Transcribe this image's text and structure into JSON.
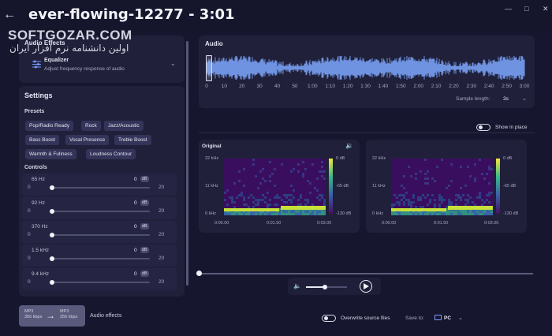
{
  "window": {
    "title": "ever-flowing-12277 - 3:01",
    "back_icon": "arrow-left-icon",
    "controls": [
      "minimize-icon",
      "maximize-icon",
      "close-icon"
    ]
  },
  "watermark": {
    "brand": "SOFTGOZAR.COM",
    "tagline": "اولین دانشنامه نرم افزار ایران"
  },
  "audio_effects": {
    "heading": "Audio Effects",
    "effect_title": "Equalizer",
    "effect_desc": "Adjust frequency response of audio",
    "effect_icon": "equalizer-sliders-icon"
  },
  "settings": {
    "heading": "Settings",
    "presets_heading": "Presets",
    "presets": [
      "Pop/Radio Ready",
      "Rock",
      "Jazz/Acoustic",
      "Bass Boost",
      "Vocal Presence",
      "Treble Boost",
      "Warmth & Fullness",
      "Loudness Contour"
    ],
    "controls_heading": "Controls",
    "controls": [
      {
        "label": "65 Hz",
        "value": "0",
        "unit": "dB",
        "min": "0",
        "max": "20",
        "level": 0
      },
      {
        "label": "92 Hz",
        "value": "0",
        "unit": "dB",
        "min": "0",
        "max": "20",
        "level": 0
      },
      {
        "label": "370 Hz",
        "value": "0",
        "unit": "dB",
        "min": "0",
        "max": "20",
        "level": 0
      },
      {
        "label": "1.5 kHz",
        "value": "0",
        "unit": "dB",
        "min": "0",
        "max": "20",
        "level": 0
      },
      {
        "label": "9.4 kHz",
        "value": "0",
        "unit": "dB",
        "min": "0",
        "max": "20",
        "level": 0
      }
    ]
  },
  "audio": {
    "heading": "Audio",
    "ticks": [
      "0",
      "10",
      "20",
      "30",
      "40",
      "50",
      "1:00",
      "1:10",
      "1:20",
      "1:30",
      "1:40",
      "1:50",
      "2:00",
      "2:10",
      "2:20",
      "2:30",
      "2:40",
      "2:50",
      "3:00"
    ],
    "sample_length_label": "Sample length:",
    "sample_length_value": "3s",
    "waveform_color": "#6f93e0"
  },
  "show_in_place": {
    "label": "Show in place",
    "on": false
  },
  "spectrograms": [
    {
      "title": "Original",
      "has_speaker": true,
      "freq_ticks": [
        "22 kHz",
        "11 kHz",
        "0 kHz"
      ],
      "db_ticks": [
        "0 dB",
        "-65 dB",
        "-130 dB"
      ],
      "time_ticks": [
        "0:00.00",
        "0:01.50",
        "0:03.00"
      ]
    },
    {
      "title": "",
      "has_speaker": false,
      "freq_ticks": [
        "22 kHz",
        "11 kHz",
        "0 kHz"
      ],
      "db_ticks": [
        "0 dB",
        "-65 dB",
        "-130 dB"
      ],
      "time_ticks": [
        "0:00.00",
        "0:01.50",
        "0:03.00"
      ]
    }
  ],
  "player": {
    "position_fraction": 0,
    "volume_fraction": 0.46,
    "volume_icon": "speaker-icon",
    "play_icon": "play-icon"
  },
  "footer": {
    "format_from": [
      "MP3",
      "356 kbps"
    ],
    "format_to": [
      "MP3",
      "256 kbps"
    ],
    "audio_effects_label": "Audio effects",
    "overwrite_label": "Overwrite source files",
    "save_to_label": "Save to:",
    "save_to_value": "PC"
  }
}
